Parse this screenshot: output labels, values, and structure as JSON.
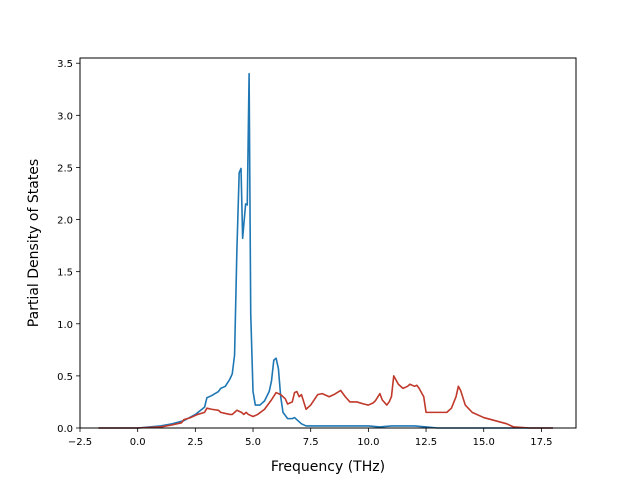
{
  "chart_data": {
    "type": "line",
    "title": "",
    "xlabel": "Frequency (THz)",
    "ylabel": "Partial Density of States",
    "xlim": [
      -2.5,
      19.0
    ],
    "ylim": [
      0.0,
      3.55
    ],
    "xticks": [
      -2.5,
      0.0,
      2.5,
      5.0,
      7.5,
      10.0,
      12.5,
      15.0,
      17.5
    ],
    "xtick_labels": [
      "−2.5",
      "0.0",
      "2.5",
      "5.0",
      "7.5",
      "10.0",
      "12.5",
      "15.0",
      "17.5"
    ],
    "yticks": [
      0.0,
      0.5,
      1.0,
      1.5,
      2.0,
      2.5,
      3.0,
      3.5
    ],
    "ytick_labels": [
      "0.0",
      "0.5",
      "1.0",
      "1.5",
      "2.0",
      "2.5",
      "3.0",
      "3.5"
    ],
    "grid": false,
    "legend": "none",
    "series": [
      {
        "color": "#1f77b4",
        "points": [
          [
            -1.7,
            0.0
          ],
          [
            0.0,
            0.0
          ],
          [
            1.0,
            0.02
          ],
          [
            1.5,
            0.04
          ],
          [
            2.0,
            0.07
          ],
          [
            2.5,
            0.13
          ],
          [
            2.9,
            0.2
          ],
          [
            3.0,
            0.29
          ],
          [
            3.2,
            0.31
          ],
          [
            3.5,
            0.35
          ],
          [
            3.6,
            0.38
          ],
          [
            3.8,
            0.4
          ],
          [
            4.0,
            0.47
          ],
          [
            4.1,
            0.52
          ],
          [
            4.2,
            0.7
          ],
          [
            4.3,
            1.7
          ],
          [
            4.4,
            2.45
          ],
          [
            4.48,
            2.49
          ],
          [
            4.55,
            1.82
          ],
          [
            4.62,
            2.0
          ],
          [
            4.68,
            2.15
          ],
          [
            4.75,
            2.14
          ],
          [
            4.83,
            3.4
          ],
          [
            4.9,
            1.1
          ],
          [
            5.0,
            0.35
          ],
          [
            5.1,
            0.22
          ],
          [
            5.3,
            0.22
          ],
          [
            5.5,
            0.26
          ],
          [
            5.7,
            0.35
          ],
          [
            5.8,
            0.45
          ],
          [
            5.9,
            0.65
          ],
          [
            6.0,
            0.67
          ],
          [
            6.1,
            0.57
          ],
          [
            6.2,
            0.3
          ],
          [
            6.3,
            0.15
          ],
          [
            6.5,
            0.09
          ],
          [
            6.7,
            0.09
          ],
          [
            6.8,
            0.1
          ],
          [
            6.9,
            0.08
          ],
          [
            7.1,
            0.04
          ],
          [
            7.3,
            0.02
          ],
          [
            8.0,
            0.02
          ],
          [
            10.0,
            0.02
          ],
          [
            10.5,
            0.01
          ],
          [
            11.0,
            0.02
          ],
          [
            12.0,
            0.02
          ],
          [
            12.5,
            0.01
          ],
          [
            13.0,
            0.0
          ],
          [
            15.0,
            0.0
          ],
          [
            18.0,
            0.0
          ]
        ]
      },
      {
        "color": "#c0392b",
        "points": [
          [
            -1.7,
            0.0
          ],
          [
            0.0,
            0.0
          ],
          [
            1.0,
            0.01
          ],
          [
            1.5,
            0.03
          ],
          [
            1.9,
            0.05
          ],
          [
            2.0,
            0.08
          ],
          [
            2.3,
            0.1
          ],
          [
            2.6,
            0.13
          ],
          [
            2.9,
            0.15
          ],
          [
            3.0,
            0.19
          ],
          [
            3.2,
            0.18
          ],
          [
            3.5,
            0.17
          ],
          [
            3.6,
            0.15
          ],
          [
            3.8,
            0.14
          ],
          [
            4.0,
            0.13
          ],
          [
            4.1,
            0.13
          ],
          [
            4.2,
            0.15
          ],
          [
            4.3,
            0.17
          ],
          [
            4.5,
            0.15
          ],
          [
            4.6,
            0.13
          ],
          [
            4.7,
            0.15
          ],
          [
            4.8,
            0.13
          ],
          [
            5.0,
            0.11
          ],
          [
            5.2,
            0.13
          ],
          [
            5.5,
            0.18
          ],
          [
            5.8,
            0.27
          ],
          [
            6.0,
            0.34
          ],
          [
            6.2,
            0.32
          ],
          [
            6.4,
            0.28
          ],
          [
            6.5,
            0.23
          ],
          [
            6.7,
            0.25
          ],
          [
            6.8,
            0.34
          ],
          [
            6.9,
            0.35
          ],
          [
            7.0,
            0.3
          ],
          [
            7.1,
            0.32
          ],
          [
            7.2,
            0.25
          ],
          [
            7.3,
            0.18
          ],
          [
            7.5,
            0.22
          ],
          [
            7.8,
            0.32
          ],
          [
            8.0,
            0.33
          ],
          [
            8.3,
            0.3
          ],
          [
            8.5,
            0.32
          ],
          [
            8.8,
            0.36
          ],
          [
            9.0,
            0.3
          ],
          [
            9.2,
            0.25
          ],
          [
            9.5,
            0.25
          ],
          [
            9.8,
            0.23
          ],
          [
            10.0,
            0.22
          ],
          [
            10.2,
            0.24
          ],
          [
            10.3,
            0.26
          ],
          [
            10.5,
            0.33
          ],
          [
            10.6,
            0.27
          ],
          [
            10.8,
            0.22
          ],
          [
            10.9,
            0.25
          ],
          [
            11.0,
            0.3
          ],
          [
            11.1,
            0.5
          ],
          [
            11.3,
            0.42
          ],
          [
            11.5,
            0.38
          ],
          [
            11.7,
            0.4
          ],
          [
            11.8,
            0.42
          ],
          [
            12.0,
            0.4
          ],
          [
            12.1,
            0.41
          ],
          [
            12.2,
            0.38
          ],
          [
            12.4,
            0.3
          ],
          [
            12.5,
            0.15
          ],
          [
            13.0,
            0.15
          ],
          [
            13.4,
            0.15
          ],
          [
            13.6,
            0.19
          ],
          [
            13.8,
            0.3
          ],
          [
            13.9,
            0.4
          ],
          [
            14.0,
            0.36
          ],
          [
            14.2,
            0.22
          ],
          [
            14.5,
            0.15
          ],
          [
            15.0,
            0.1
          ],
          [
            15.5,
            0.07
          ],
          [
            16.0,
            0.04
          ],
          [
            16.3,
            0.01
          ],
          [
            17.0,
            0.0
          ],
          [
            18.0,
            0.0
          ]
        ]
      }
    ]
  }
}
